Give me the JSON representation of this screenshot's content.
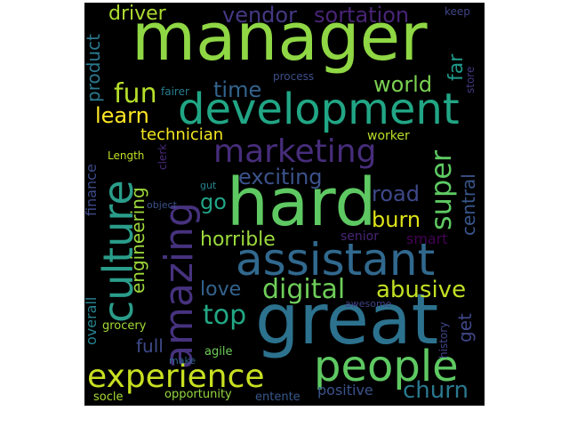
{
  "wordcloud": {
    "background": "#000000",
    "words": [
      {
        "text": "manager",
        "color": "#8fd744"
      },
      {
        "text": "great",
        "color": "#2c728e"
      },
      {
        "text": "hard",
        "color": "#5ec962"
      },
      {
        "text": "development",
        "color": "#21a685"
      },
      {
        "text": "assistant",
        "color": "#31688e"
      },
      {
        "text": "culture",
        "color": "#2a9d8a"
      },
      {
        "text": "amazing",
        "color": "#46327e"
      },
      {
        "text": "people",
        "color": "#5ec962"
      },
      {
        "text": "experience",
        "color": "#c8e020"
      },
      {
        "text": "marketing",
        "color": "#472d7b"
      },
      {
        "text": "digital",
        "color": "#6ece58"
      },
      {
        "text": "top",
        "color": "#22a884"
      },
      {
        "text": "super",
        "color": "#5ec962"
      },
      {
        "text": "abusive",
        "color": "#c2df23"
      },
      {
        "text": "fun",
        "color": "#b5de2b"
      },
      {
        "text": "world",
        "color": "#7ad151"
      },
      {
        "text": "learn",
        "color": "#fde725"
      },
      {
        "text": "churn",
        "color": "#2a788e"
      },
      {
        "text": "driver",
        "color": "#addc30"
      },
      {
        "text": "vendor",
        "color": "#443983"
      },
      {
        "text": "sortation",
        "color": "#482475"
      },
      {
        "text": "time",
        "color": "#33638d"
      },
      {
        "text": "exciting",
        "color": "#3b528b"
      },
      {
        "text": "road",
        "color": "#3e4989"
      },
      {
        "text": "burn",
        "color": "#dde318"
      },
      {
        "text": "horrible",
        "color": "#9bd93c"
      },
      {
        "text": "love",
        "color": "#33638d"
      },
      {
        "text": "engineering",
        "color": "#9fda3a"
      },
      {
        "text": "technician",
        "color": "#f4e61e"
      },
      {
        "text": "go",
        "color": "#20a486"
      },
      {
        "text": "product",
        "color": "#2a788e"
      },
      {
        "text": "far",
        "color": "#1f9a8a"
      },
      {
        "text": "central",
        "color": "#39568c"
      },
      {
        "text": "full",
        "color": "#3e4a89"
      },
      {
        "text": "get",
        "color": "#3f4788"
      },
      {
        "text": "worker",
        "color": "#bade28"
      },
      {
        "text": "smart",
        "color": "#440154"
      },
      {
        "text": "positive",
        "color": "#3b528b"
      },
      {
        "text": "overall",
        "color": "#26828e"
      },
      {
        "text": "finance",
        "color": "#3e4a89"
      },
      {
        "text": "grocery",
        "color": "#a2da37"
      },
      {
        "text": "agile",
        "color": "#6ece58"
      },
      {
        "text": "senior",
        "color": "#482677"
      },
      {
        "text": "history",
        "color": "#3f4788"
      },
      {
        "text": "opportunity",
        "color": "#95d840"
      },
      {
        "text": "entente",
        "color": "#38588c"
      },
      {
        "text": "socle",
        "color": "#a8db34"
      },
      {
        "text": "make",
        "color": "#32648e"
      },
      {
        "text": "awesome",
        "color": "#414487"
      },
      {
        "text": "keep",
        "color": "#414487"
      },
      {
        "text": "store",
        "color": "#453781"
      },
      {
        "text": "process",
        "color": "#3d4e8a"
      },
      {
        "text": "fairer",
        "color": "#287d8e"
      },
      {
        "text": "Length",
        "color": "#c0df25"
      },
      {
        "text": "clerk",
        "color": "#482979"
      },
      {
        "text": "gut",
        "color": "#25858e"
      },
      {
        "text": "object",
        "color": "#3a538b"
      }
    ]
  }
}
